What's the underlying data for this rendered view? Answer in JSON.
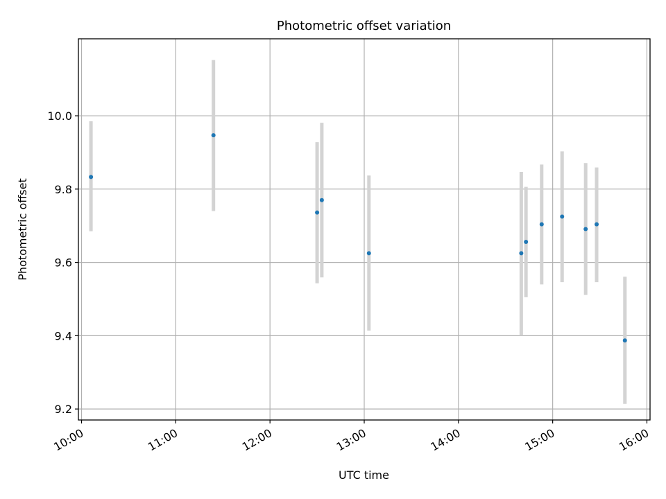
{
  "chart_data": {
    "type": "scatter",
    "title": "Photometric offset variation",
    "xlabel": "UTC time",
    "ylabel": "Photometric offset",
    "xlim": [
      "09:58",
      "16:02"
    ],
    "ylim": [
      9.17,
      10.21
    ],
    "x_ticks": [
      "10:00",
      "11:00",
      "12:00",
      "13:00",
      "14:00",
      "15:00",
      "16:00"
    ],
    "y_ticks": [
      "9.2",
      "9.4",
      "9.6",
      "9.8",
      "10.0"
    ],
    "grid": true,
    "colors": {
      "point": "#1f77b4",
      "errorbar": "#d3d3d3",
      "grid": "#b0b0b0"
    },
    "points": [
      {
        "x": "10:06",
        "y": 9.833,
        "yerr_low": 9.685,
        "yerr_high": 9.985
      },
      {
        "x": "11:24",
        "y": 9.947,
        "yerr_low": 9.74,
        "yerr_high": 10.152
      },
      {
        "x": "12:30",
        "y": 9.736,
        "yerr_low": 9.543,
        "yerr_high": 9.928
      },
      {
        "x": "12:33",
        "y": 9.77,
        "yerr_low": 9.559,
        "yerr_high": 9.981
      },
      {
        "x": "13:03",
        "y": 9.625,
        "yerr_low": 9.414,
        "yerr_high": 9.837
      },
      {
        "x": "14:40",
        "y": 9.625,
        "yerr_low": 9.4,
        "yerr_high": 9.847
      },
      {
        "x": "14:43",
        "y": 9.656,
        "yerr_low": 9.505,
        "yerr_high": 9.806
      },
      {
        "x": "14:53",
        "y": 9.704,
        "yerr_low": 9.54,
        "yerr_high": 9.867
      },
      {
        "x": "15:06",
        "y": 9.725,
        "yerr_low": 9.546,
        "yerr_high": 9.903
      },
      {
        "x": "15:21",
        "y": 9.691,
        "yerr_low": 9.511,
        "yerr_high": 9.871
      },
      {
        "x": "15:28",
        "y": 9.704,
        "yerr_low": 9.546,
        "yerr_high": 9.859
      },
      {
        "x": "15:46",
        "y": 9.387,
        "yerr_low": 9.214,
        "yerr_high": 9.561
      }
    ]
  }
}
